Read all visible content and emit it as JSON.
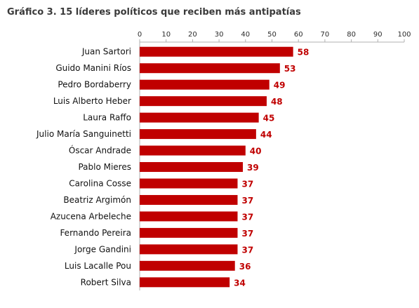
{
  "chart_title": "Gráfico 3. 15 líderes políticos que reciben más antipatías",
  "colors": {
    "bar": "#c00000",
    "value_label": "#c00000",
    "axis": "#b0b0b0"
  },
  "chart_data": {
    "type": "bar",
    "orientation": "horizontal",
    "title": "Gráfico 3. 15 líderes políticos que reciben más antipatías",
    "xlabel": "",
    "ylabel": "",
    "xlim": [
      0,
      100
    ],
    "x_ticks": [
      0,
      10,
      20,
      30,
      40,
      50,
      60,
      70,
      80,
      90,
      100
    ],
    "x_axis_position": "top",
    "grid": false,
    "categories": [
      "Juan Sartori",
      "Guido Manini Ríos",
      "Pedro Bordaberry",
      "Luis Alberto Heber",
      "Laura Raffo",
      "Julio María Sanguinetti",
      "Óscar Andrade",
      "Pablo Mieres",
      "Carolina Cosse",
      "Beatriz Argimón",
      "Azucena Arbeleche",
      "Fernando Pereira",
      "Jorge Gandini",
      "Luis Lacalle Pou",
      "Robert Silva"
    ],
    "values": [
      58,
      53,
      49,
      48,
      45,
      44,
      40,
      39,
      37,
      37,
      37,
      37,
      37,
      36,
      34
    ]
  }
}
